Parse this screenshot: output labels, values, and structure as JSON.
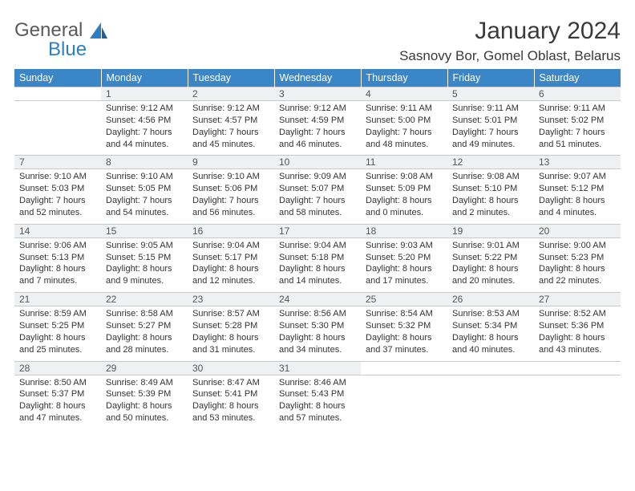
{
  "logo": {
    "word1": "General",
    "word2": "Blue"
  },
  "title": "January 2024",
  "location": "Sasnovy Bor, Gomel Oblast, Belarus",
  "colors": {
    "header_bg": "#3b86c6",
    "header_text": "#ffffff",
    "daynum_bg": "#eef0f1",
    "border": "#c9c9c9",
    "text": "#333333",
    "logo_gray": "#5a5a5a",
    "logo_blue": "#2f7fc0"
  },
  "day_headers": [
    "Sunday",
    "Monday",
    "Tuesday",
    "Wednesday",
    "Thursday",
    "Friday",
    "Saturday"
  ],
  "weeks": [
    [
      null,
      {
        "n": "1",
        "sr": "9:12 AM",
        "ss": "4:56 PM",
        "dl": "7 hours and 44 minutes."
      },
      {
        "n": "2",
        "sr": "9:12 AM",
        "ss": "4:57 PM",
        "dl": "7 hours and 45 minutes."
      },
      {
        "n": "3",
        "sr": "9:12 AM",
        "ss": "4:59 PM",
        "dl": "7 hours and 46 minutes."
      },
      {
        "n": "4",
        "sr": "9:11 AM",
        "ss": "5:00 PM",
        "dl": "7 hours and 48 minutes."
      },
      {
        "n": "5",
        "sr": "9:11 AM",
        "ss": "5:01 PM",
        "dl": "7 hours and 49 minutes."
      },
      {
        "n": "6",
        "sr": "9:11 AM",
        "ss": "5:02 PM",
        "dl": "7 hours and 51 minutes."
      }
    ],
    [
      {
        "n": "7",
        "sr": "9:10 AM",
        "ss": "5:03 PM",
        "dl": "7 hours and 52 minutes."
      },
      {
        "n": "8",
        "sr": "9:10 AM",
        "ss": "5:05 PM",
        "dl": "7 hours and 54 minutes."
      },
      {
        "n": "9",
        "sr": "9:10 AM",
        "ss": "5:06 PM",
        "dl": "7 hours and 56 minutes."
      },
      {
        "n": "10",
        "sr": "9:09 AM",
        "ss": "5:07 PM",
        "dl": "7 hours and 58 minutes."
      },
      {
        "n": "11",
        "sr": "9:08 AM",
        "ss": "5:09 PM",
        "dl": "8 hours and 0 minutes."
      },
      {
        "n": "12",
        "sr": "9:08 AM",
        "ss": "5:10 PM",
        "dl": "8 hours and 2 minutes."
      },
      {
        "n": "13",
        "sr": "9:07 AM",
        "ss": "5:12 PM",
        "dl": "8 hours and 4 minutes."
      }
    ],
    [
      {
        "n": "14",
        "sr": "9:06 AM",
        "ss": "5:13 PM",
        "dl": "8 hours and 7 minutes."
      },
      {
        "n": "15",
        "sr": "9:05 AM",
        "ss": "5:15 PM",
        "dl": "8 hours and 9 minutes."
      },
      {
        "n": "16",
        "sr": "9:04 AM",
        "ss": "5:17 PM",
        "dl": "8 hours and 12 minutes."
      },
      {
        "n": "17",
        "sr": "9:04 AM",
        "ss": "5:18 PM",
        "dl": "8 hours and 14 minutes."
      },
      {
        "n": "18",
        "sr": "9:03 AM",
        "ss": "5:20 PM",
        "dl": "8 hours and 17 minutes."
      },
      {
        "n": "19",
        "sr": "9:01 AM",
        "ss": "5:22 PM",
        "dl": "8 hours and 20 minutes."
      },
      {
        "n": "20",
        "sr": "9:00 AM",
        "ss": "5:23 PM",
        "dl": "8 hours and 22 minutes."
      }
    ],
    [
      {
        "n": "21",
        "sr": "8:59 AM",
        "ss": "5:25 PM",
        "dl": "8 hours and 25 minutes."
      },
      {
        "n": "22",
        "sr": "8:58 AM",
        "ss": "5:27 PM",
        "dl": "8 hours and 28 minutes."
      },
      {
        "n": "23",
        "sr": "8:57 AM",
        "ss": "5:28 PM",
        "dl": "8 hours and 31 minutes."
      },
      {
        "n": "24",
        "sr": "8:56 AM",
        "ss": "5:30 PM",
        "dl": "8 hours and 34 minutes."
      },
      {
        "n": "25",
        "sr": "8:54 AM",
        "ss": "5:32 PM",
        "dl": "8 hours and 37 minutes."
      },
      {
        "n": "26",
        "sr": "8:53 AM",
        "ss": "5:34 PM",
        "dl": "8 hours and 40 minutes."
      },
      {
        "n": "27",
        "sr": "8:52 AM",
        "ss": "5:36 PM",
        "dl": "8 hours and 43 minutes."
      }
    ],
    [
      {
        "n": "28",
        "sr": "8:50 AM",
        "ss": "5:37 PM",
        "dl": "8 hours and 47 minutes."
      },
      {
        "n": "29",
        "sr": "8:49 AM",
        "ss": "5:39 PM",
        "dl": "8 hours and 50 minutes."
      },
      {
        "n": "30",
        "sr": "8:47 AM",
        "ss": "5:41 PM",
        "dl": "8 hours and 53 minutes."
      },
      {
        "n": "31",
        "sr": "8:46 AM",
        "ss": "5:43 PM",
        "dl": "8 hours and 57 minutes."
      },
      null,
      null,
      null
    ]
  ],
  "labels": {
    "sunrise": "Sunrise:",
    "sunset": "Sunset:",
    "daylight": "Daylight:"
  }
}
